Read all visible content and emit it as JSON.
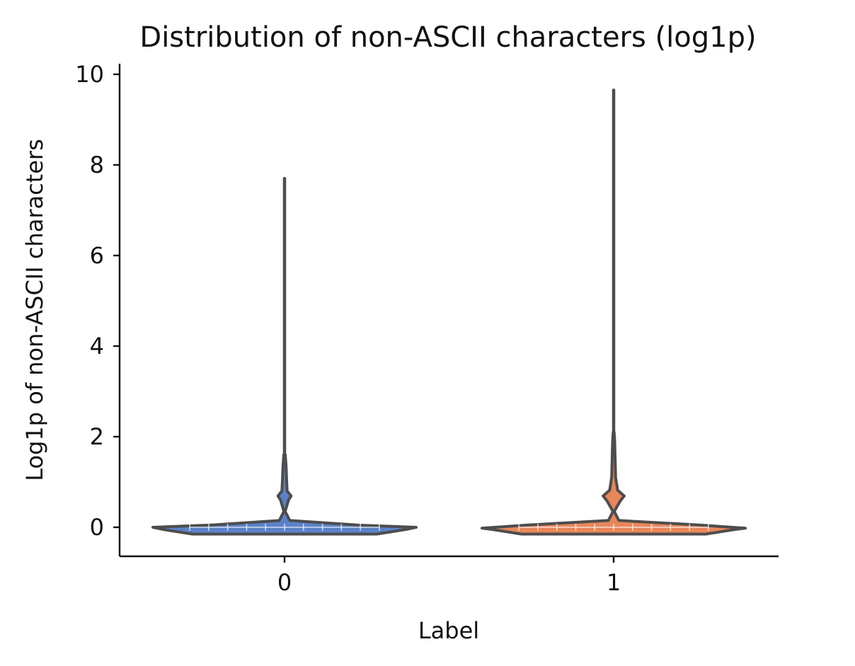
{
  "chart_data": {
    "type": "violin",
    "title": "Distribution of non-ASCII characters (log1p)",
    "xlabel": "Label",
    "ylabel": "Log1p of non-ASCII characters",
    "categories": [
      "0",
      "1"
    ],
    "ylim": [
      -0.62,
      10.2
    ],
    "yticks": [
      0,
      2,
      4,
      6,
      8,
      10
    ],
    "grid": false,
    "legend": "none",
    "series": [
      {
        "category": "0",
        "color": "#5b82c9",
        "min": 0,
        "max": 7.7,
        "median": 0,
        "mode_secondary": 0.69,
        "density_profile": [
          {
            "y": -0.15,
            "w": 0.7
          },
          {
            "y": -0.05,
            "w": 0.92
          },
          {
            "y": 0.0,
            "w": 1.0
          },
          {
            "y": 0.05,
            "w": 0.55
          },
          {
            "y": 0.15,
            "w": 0.04
          },
          {
            "y": 0.35,
            "w": 0.005
          },
          {
            "y": 0.6,
            "w": 0.03
          },
          {
            "y": 0.69,
            "w": 0.05
          },
          {
            "y": 0.8,
            "w": 0.02
          },
          {
            "y": 1.1,
            "w": 0.015
          },
          {
            "y": 1.35,
            "w": 0.012
          },
          {
            "y": 1.6,
            "w": 0.006
          }
        ]
      },
      {
        "category": "1",
        "color": "#e8875a",
        "min": 0,
        "max": 9.65,
        "median": 0,
        "mode_secondary": 0.69,
        "density_profile": [
          {
            "y": -0.15,
            "w": 0.7
          },
          {
            "y": -0.05,
            "w": 0.92
          },
          {
            "y": -0.02,
            "w": 1.0
          },
          {
            "y": 0.05,
            "w": 0.65
          },
          {
            "y": 0.15,
            "w": 0.04
          },
          {
            "y": 0.35,
            "w": 0.005
          },
          {
            "y": 0.58,
            "w": 0.05
          },
          {
            "y": 0.69,
            "w": 0.08
          },
          {
            "y": 0.82,
            "w": 0.03
          },
          {
            "y": 1.1,
            "w": 0.015
          },
          {
            "y": 1.9,
            "w": 0.008
          },
          {
            "y": 2.1,
            "w": 0.004
          }
        ]
      }
    ]
  }
}
